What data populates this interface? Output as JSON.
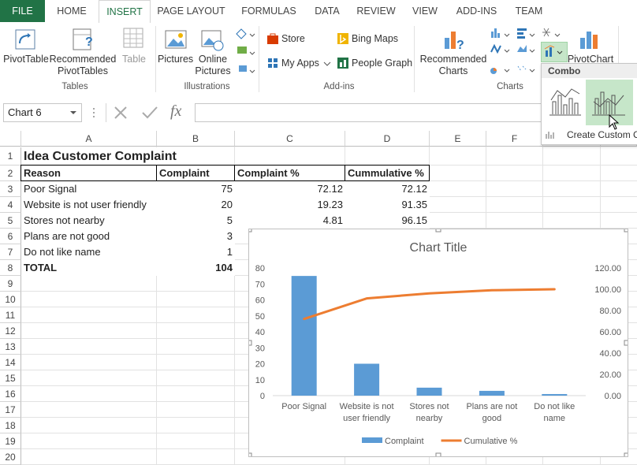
{
  "ribbon": {
    "tabs": [
      "FILE",
      "HOME",
      "INSERT",
      "PAGE LAYOUT",
      "FORMULAS",
      "DATA",
      "REVIEW",
      "VIEW",
      "ADD-INS",
      "TEAM"
    ],
    "groups": [
      {
        "label": "Tables",
        "buttons": [
          "PivotTable",
          "Recommended PivotTables",
          "Table"
        ]
      },
      {
        "label": "Illustrations",
        "buttons": [
          "Pictures",
          "Online Pictures"
        ]
      },
      {
        "label": "Add-ins",
        "buttons": [
          "Store",
          "My Apps",
          "Bing Maps",
          "People Graph"
        ]
      },
      {
        "label": "Charts",
        "buttons": [
          "Recommended Charts",
          "PivotChart"
        ]
      }
    ]
  },
  "combo_menu": {
    "title": "Combo",
    "item": "Create Custom C"
  },
  "formula_bar": {
    "name_box": "Chart 6",
    "fx": "fx"
  },
  "sheet": {
    "columns": [
      "A",
      "B",
      "C",
      "D",
      "E",
      "F",
      "G"
    ],
    "row_numbers": [
      1,
      2,
      3,
      4,
      5,
      6,
      7,
      8,
      9,
      10,
      11,
      12,
      13,
      14,
      15,
      16,
      17,
      18,
      19,
      20
    ],
    "rows": [
      [
        "Idea Customer Complaint",
        null,
        null,
        null
      ],
      [
        "Reason",
        "Complaint",
        "Complaint %",
        "Cummulative %"
      ],
      [
        "Poor Signal",
        75,
        72.12,
        72.12
      ],
      [
        "Website is not user friendly",
        20,
        19.23,
        91.35
      ],
      [
        "Stores not nearby",
        5,
        4.81,
        96.15
      ],
      [
        "Plans are not good",
        3,
        null,
        null
      ],
      [
        "Do not like name",
        1,
        null,
        null
      ],
      [
        "TOTAL",
        104,
        null,
        null
      ]
    ]
  },
  "chart_data": {
    "type": "combo",
    "title": "Chart Title",
    "categories": [
      "Poor Signal",
      "Website is not user friendly",
      "Stores not nearby",
      "Plans are not good",
      "Do not like name"
    ],
    "series": [
      {
        "name": "Complaint",
        "type": "bar",
        "color": "#5b9bd5",
        "values": [
          75,
          20,
          5,
          3,
          1
        ]
      },
      {
        "name": "Cumulative %",
        "type": "line",
        "axis": "y2",
        "color": "#ed7d31",
        "values": [
          72.12,
          91.35,
          96.15,
          99.04,
          100
        ]
      }
    ],
    "ylim": [
      0,
      80
    ],
    "yticks": [
      0,
      10,
      20,
      30,
      40,
      50,
      60,
      70,
      80
    ],
    "y2lim": [
      0,
      120
    ],
    "y2ticks": [
      {
        "value": 0,
        "label": "0.00"
      },
      {
        "value": 20,
        "label": "20.00"
      },
      {
        "value": 40,
        "label": "40.00"
      },
      {
        "value": 60,
        "label": "60.00"
      },
      {
        "value": 80,
        "label": "80.00"
      },
      {
        "value": 100,
        "label": "100.00"
      },
      {
        "value": 120,
        "label": "120.00"
      }
    ],
    "grid": false,
    "legend": "bottom"
  }
}
